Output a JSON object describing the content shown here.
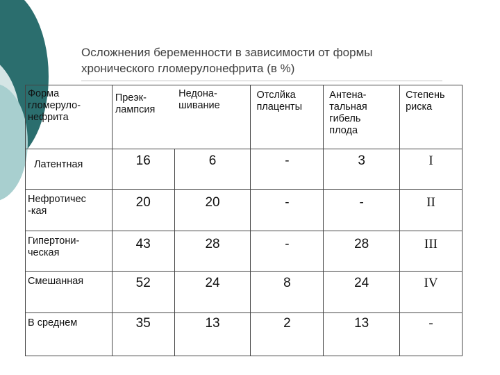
{
  "slide": {
    "title_line1": "Осложнения беременности в зависимости от формы",
    "title_line2": "хронического гломерулонефрита (в %)"
  },
  "table": {
    "headers": [
      "Форма\nгломеруло-\nнефрита",
      "Преэк-\nлампсия",
      "Недона-\nшивание",
      "Отслйка\nплаценты",
      "Антена-\nтальная\nгибель\nплода",
      "Степень\nриска"
    ],
    "rows": [
      {
        "label": "Латентная",
        "values": [
          "16",
          "6",
          "-",
          "3",
          "I"
        ]
      },
      {
        "label": "Нефротичес\n-кая",
        "values": [
          "20",
          "20",
          "-",
          "-",
          "II"
        ]
      },
      {
        "label": "Гипертони-\nческая",
        "values": [
          "43",
          "28",
          "-",
          "28",
          "III"
        ]
      },
      {
        "label": "Смешанная",
        "values": [
          "52",
          "24",
          "8",
          "24",
          "IV"
        ]
      },
      {
        "label": "В среднем",
        "values": [
          "35",
          "13",
          "2",
          "13",
          "-"
        ]
      }
    ]
  }
}
